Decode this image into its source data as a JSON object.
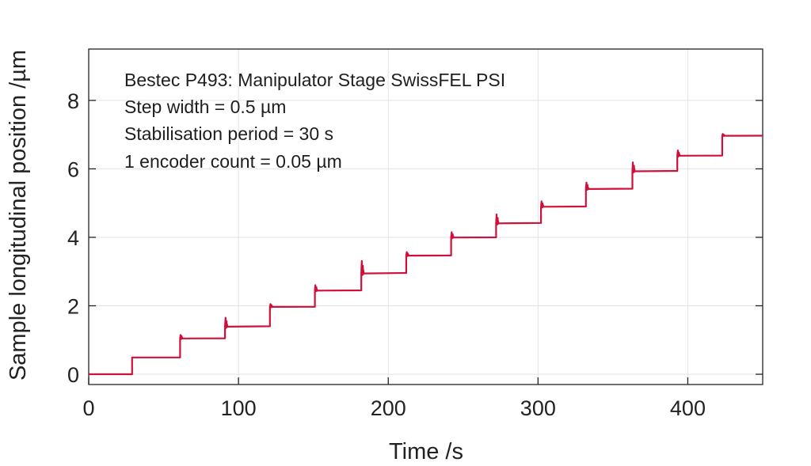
{
  "chart_data": {
    "type": "line",
    "title": "",
    "xlabel": "Time /s",
    "ylabel": "Sample longitudinal position /µm",
    "xlim": [
      0,
      450
    ],
    "ylim": [
      -0.3,
      9.5
    ],
    "xticks": [
      0,
      100,
      200,
      300,
      400
    ],
    "yticks": [
      0,
      2,
      4,
      6,
      8
    ],
    "grid": true,
    "annotations": [
      "Bestec P493: Manipulator Stage SwissFEL PSI",
      "Step width = 0.5 µm",
      "Stabilisation period = 30 s",
      "1 encoder count = 0.05 µm"
    ],
    "series": [
      {
        "name": "Sample longitudinal position",
        "color": "#d0103a",
        "steps": [
          {
            "t": 0,
            "value": 0.0,
            "spike": 0.0
          },
          {
            "t": 29,
            "value": 0.49,
            "spike": 0.0
          },
          {
            "t": 61,
            "value": 1.05,
            "spike": 0.1
          },
          {
            "t": 91,
            "value": 1.4,
            "spike": 0.25
          },
          {
            "t": 121,
            "value": 1.97,
            "spike": 0.08
          },
          {
            "t": 151,
            "value": 2.45,
            "spike": 0.15
          },
          {
            "t": 182,
            "value": 2.96,
            "spike": 0.35
          },
          {
            "t": 212,
            "value": 3.47,
            "spike": 0.1
          },
          {
            "t": 242,
            "value": 4.0,
            "spike": 0.15
          },
          {
            "t": 272,
            "value": 4.42,
            "spike": 0.25
          },
          {
            "t": 302,
            "value": 4.9,
            "spike": 0.15
          },
          {
            "t": 332,
            "value": 5.42,
            "spike": 0.18
          },
          {
            "t": 363,
            "value": 5.94,
            "spike": 0.25
          },
          {
            "t": 393,
            "value": 6.39,
            "spike": 0.15
          },
          {
            "t": 423,
            "value": 6.97,
            "spike": 0.05
          }
        ],
        "end_t": 450
      }
    ]
  }
}
